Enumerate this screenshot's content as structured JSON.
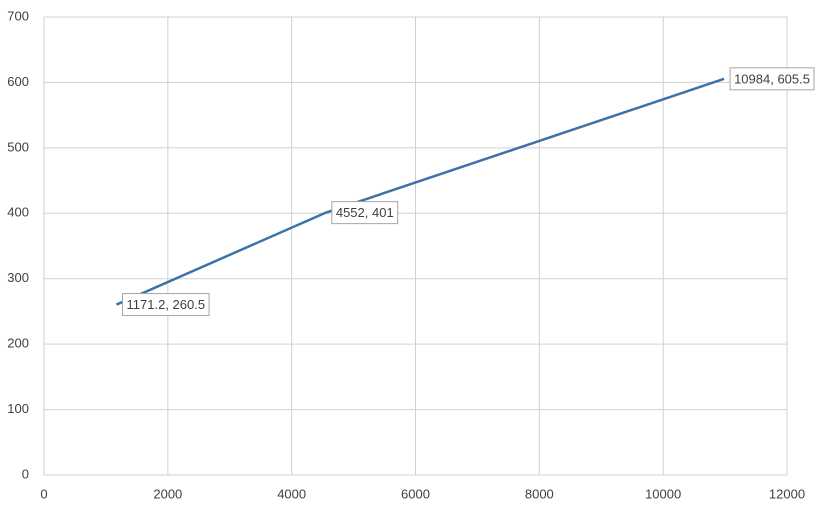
{
  "chart_data": {
    "type": "line",
    "x": [
      1171.2,
      4552,
      10984
    ],
    "series": [
      {
        "color": "#3b73a6",
        "values": [
          260.5,
          401,
          605.5
        ],
        "value_labels": [
          "1171.2, 260.5",
          "4552, 401",
          "10984, 605.5"
        ]
      }
    ],
    "xlim": [
      0,
      12000
    ],
    "xticks": [
      0,
      2000,
      4000,
      6000,
      8000,
      10000,
      12000
    ],
    "ylim": [
      0,
      700
    ],
    "yticks": [
      0,
      100,
      200,
      300,
      400,
      500,
      600,
      700
    ],
    "grid": true
  }
}
